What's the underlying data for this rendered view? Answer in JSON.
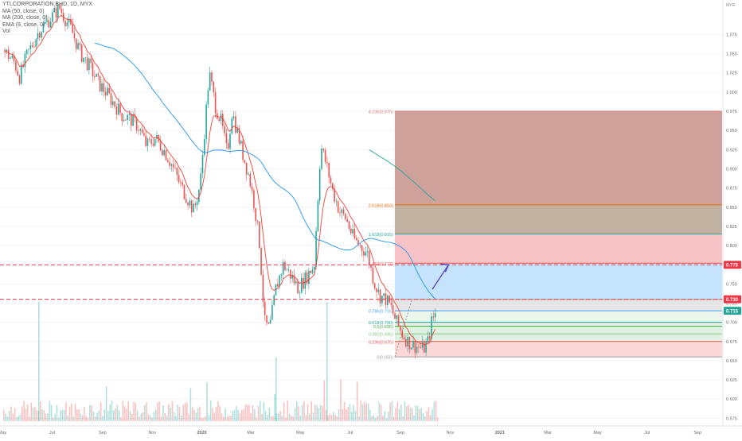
{
  "legend": {
    "symbol": "YTLCORPORATION BHD, 1D, MYX",
    "ma50": "MA (50, close, 0)",
    "ma200": "MA (200, close, 0)",
    "ema9": "EMA (9, close, 0)",
    "vol": "Vol"
  },
  "currency": "MYR",
  "colors": {
    "up": "#26a69a",
    "down": "#ef5350",
    "ma50": "#2196f3",
    "ma200": "#26a69a",
    "ema9": "#f44336",
    "arrow": "#5b3fbf",
    "resistance": "#f23645",
    "last_price_badge": "#26a69a"
  },
  "chart_data": {
    "type": "candlestick",
    "y_axis": {
      "ticks": [
        "1.075",
        "1.050",
        "1.025",
        "1.000",
        "0.975",
        "0.950",
        "0.925",
        "0.900",
        "0.875",
        "0.850",
        "0.825",
        "0.800",
        "0.775",
        "0.750",
        "0.725",
        "0.700",
        "0.675",
        "0.650",
        "0.625",
        "0.600",
        "0.575"
      ],
      "range": [
        0.565,
        1.12
      ]
    },
    "x_axis": {
      "ticks": [
        "May",
        "Jul",
        "Sep",
        "Nov",
        "2020",
        "Mar",
        "May",
        "Jul",
        "Sep",
        "Nov",
        "2021",
        "Mar",
        "May",
        "Jul",
        "Sep"
      ],
      "bold": [
        "2020",
        "2021"
      ]
    },
    "price_labels": [
      {
        "value": 0.775,
        "text": "0.775",
        "color": "#f23645"
      },
      {
        "value": 0.73,
        "text": "0.730",
        "color": "#f23645"
      },
      {
        "value": 0.715,
        "text": "0.715",
        "color": "#26a69a"
      }
    ],
    "resistance_lines": [
      0.775,
      0.73
    ],
    "fibonacci": {
      "start_date": "2020-08-25",
      "end_date": "2021-10-01",
      "levels": [
        {
          "ratio": "4.236",
          "value": 0.975,
          "label": "4.236(0.975)",
          "color": "#e57373",
          "fill": "#c5928a"
        },
        {
          "ratio": "2.618",
          "value": 0.853,
          "label": "2.618(0.853)",
          "color": "#ef6c00",
          "fill": "#b6a38f"
        },
        {
          "ratio": "1.618",
          "value": 0.815,
          "label": "1.618(0.815)",
          "color": "#26a69a",
          "fill": "#f6b9bd"
        },
        {
          "ratio": "1.414",
          "value": 0.777,
          "label": "1.414(0.777)",
          "color": "#ef5350",
          "fill": "#bbdefb"
        },
        {
          "ratio": "1",
          "value": 0.73,
          "label": "1(0.730)",
          "color": "#9e9e9e",
          "fill": "#e0e0e0"
        },
        {
          "ratio": "0.786",
          "value": 0.715,
          "label": "0.786(0.715)",
          "color": "#42a5f5",
          "fill": "#e8f5e9"
        },
        {
          "ratio": "0.618",
          "value": 0.7,
          "label": "0.618(0.700)",
          "color": "#26a69a",
          "fill": "#d9efdc"
        },
        {
          "ratio": "0.5",
          "value": 0.695,
          "label": "0.5(0.695)",
          "color": "#4caf50",
          "fill": "#d9efdc"
        },
        {
          "ratio": "0.382",
          "value": 0.685,
          "label": "0.382(0.685)",
          "color": "#81c784",
          "fill": "#d9efdc"
        },
        {
          "ratio": "0.236",
          "value": 0.675,
          "label": "0.236(0.675)",
          "color": "#ef5350",
          "fill": "#fbd0d0"
        },
        {
          "ratio": "0",
          "value": 0.655,
          "label": "0(0.655)",
          "color": "#9e9e9e",
          "fill": "#fbd0d0"
        }
      ]
    },
    "closes": [
      [
        "2019-05-02",
        1.055
      ],
      [
        "2019-05-15",
        1.04
      ],
      [
        "2019-05-22",
        1.02
      ],
      [
        "2019-06-01",
        1.05
      ],
      [
        "2019-06-15",
        1.08
      ],
      [
        "2019-06-28",
        1.095
      ],
      [
        "2019-07-10",
        1.11
      ],
      [
        "2019-07-25",
        1.08
      ],
      [
        "2019-08-05",
        1.05
      ],
      [
        "2019-08-15",
        1.035
      ],
      [
        "2019-08-28",
        1.01
      ],
      [
        "2019-09-05",
        1.0
      ],
      [
        "2019-09-15",
        0.985
      ],
      [
        "2019-09-25",
        0.97
      ],
      [
        "2019-10-05",
        0.965
      ],
      [
        "2019-10-15",
        0.955
      ],
      [
        "2019-10-25",
        0.93
      ],
      [
        "2019-11-05",
        0.94
      ],
      [
        "2019-11-15",
        0.925
      ],
      [
        "2019-11-25",
        0.905
      ],
      [
        "2019-12-05",
        0.88
      ],
      [
        "2019-12-15",
        0.86
      ],
      [
        "2019-12-22",
        0.845
      ],
      [
        "2019-12-30",
        0.88
      ],
      [
        "2020-01-05",
        0.96
      ],
      [
        "2020-01-10",
        1.025
      ],
      [
        "2020-01-18",
        0.98
      ],
      [
        "2020-01-25",
        0.96
      ],
      [
        "2020-02-01",
        0.92
      ],
      [
        "2020-02-07",
        0.975
      ],
      [
        "2020-02-13",
        0.95
      ],
      [
        "2020-02-20",
        0.92
      ],
      [
        "2020-02-28",
        0.89
      ],
      [
        "2020-03-06",
        0.85
      ],
      [
        "2020-03-12",
        0.8
      ],
      [
        "2020-03-18",
        0.7
      ],
      [
        "2020-03-24",
        0.69
      ],
      [
        "2020-04-01",
        0.745
      ],
      [
        "2020-04-10",
        0.775
      ],
      [
        "2020-04-20",
        0.76
      ],
      [
        "2020-04-28",
        0.745
      ],
      [
        "2020-05-06",
        0.755
      ],
      [
        "2020-05-12",
        0.765
      ],
      [
        "2020-05-18",
        0.775
      ],
      [
        "2020-05-26",
        0.93
      ],
      [
        "2020-06-02",
        0.905
      ],
      [
        "2020-06-10",
        0.87
      ],
      [
        "2020-06-18",
        0.845
      ],
      [
        "2020-06-26",
        0.835
      ],
      [
        "2020-07-05",
        0.81
      ],
      [
        "2020-07-13",
        0.8
      ],
      [
        "2020-07-22",
        0.79
      ],
      [
        "2020-07-30",
        0.755
      ],
      [
        "2020-08-06",
        0.735
      ],
      [
        "2020-08-14",
        0.73
      ],
      [
        "2020-08-20",
        0.72
      ],
      [
        "2020-08-27",
        0.7
      ],
      [
        "2020-09-03",
        0.685
      ],
      [
        "2020-09-10",
        0.675
      ],
      [
        "2020-09-17",
        0.67
      ],
      [
        "2020-09-23",
        0.668
      ],
      [
        "2020-09-29",
        0.665
      ],
      [
        "2020-10-05",
        0.675
      ],
      [
        "2020-10-09",
        0.7
      ],
      [
        "2020-10-15",
        0.715
      ]
    ]
  }
}
